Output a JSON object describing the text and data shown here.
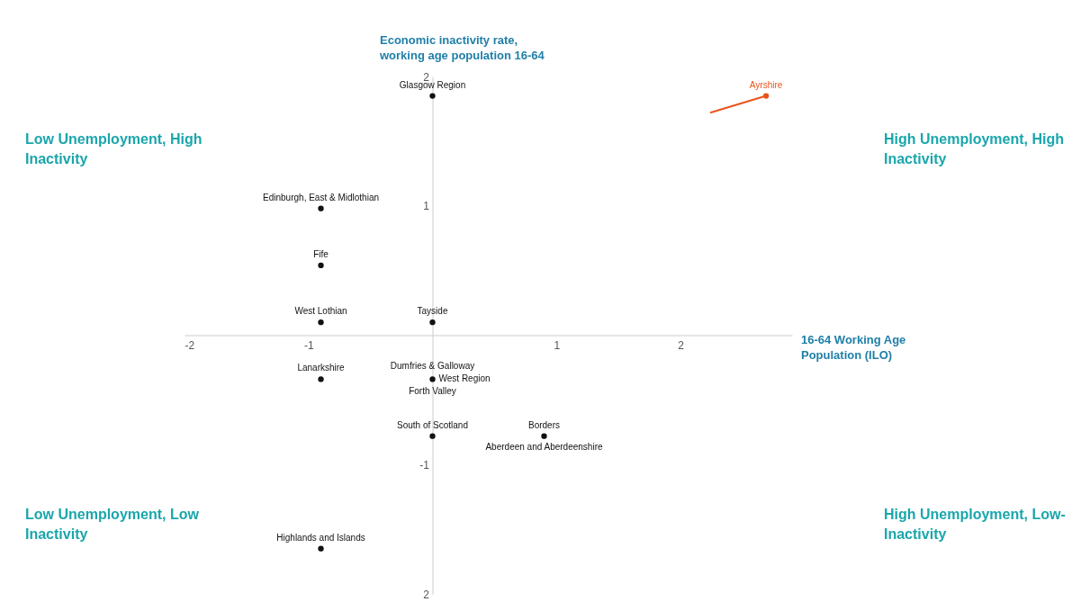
{
  "chart_data": {
    "type": "scatter",
    "xlabel": "16-64 Working Age\nPopulation (ILO)",
    "ylabel": "Economic inactivity rate,\nworking age population 16-64",
    "xlim": [
      -2,
      2.9
    ],
    "ylim": [
      -2,
      2
    ],
    "xticks": [
      -2,
      -1,
      1,
      2
    ],
    "yticks": [
      2,
      1,
      -1,
      {
        "value": -2,
        "label": "2"
      }
    ],
    "marker": "circle",
    "series": [
      {
        "color": "#111111",
        "x": [
          0,
          -0.9,
          -0.9,
          -0.9,
          0,
          -0.9,
          0,
          0,
          0.9,
          -0.9
        ],
        "values": [
          1.85,
          0.98,
          0.54,
          0.1,
          0.1,
          -0.34,
          -0.34,
          -0.78,
          -0.78,
          -1.65
        ]
      },
      {
        "color": "#e8541c",
        "x": [
          2.69
        ],
        "values": [
          1.85
        ]
      },
      {
        "type": "line",
        "marker": "none",
        "color": "#e8541c",
        "x": [
          2.24,
          2.69
        ],
        "values": [
          1.72,
          1.85
        ]
      }
    ],
    "annotations": [
      "Low Unemployment, High\nInactivity",
      "High Unemployment, High\nInactivity",
      "Low Unemployment, Low\nInactivity",
      "High Unemployment, Low-\nInactivity",
      {
        "text": "Glasgow Region",
        "x": 0,
        "y": 1.85
      },
      {
        "text": "Ayrshire",
        "x": 2.69,
        "y": 1.85
      },
      {
        "text": "Edinburgh, East & Midlothian",
        "x": -0.9,
        "y": 0.98
      },
      {
        "text": "Fife",
        "x": -0.9,
        "y": 0.54
      },
      {
        "text": "West Lothian",
        "x": -0.9,
        "y": 0.1
      },
      {
        "text": "Tayside",
        "x": 0,
        "y": 0.1
      },
      {
        "text": "Lanarkshire",
        "x": -0.9,
        "y": -0.34
      },
      {
        "text": "Dumfries & Galloway",
        "x": 0,
        "y": -0.34
      },
      {
        "text": "West Region",
        "x": 0,
        "y": -0.34
      },
      {
        "text": "Forth Valley",
        "x": 0,
        "y": -0.34
      },
      {
        "text": "South of Scotland",
        "x": 0,
        "y": -0.78
      },
      {
        "text": "Borders",
        "x": 0.9,
        "y": -0.78
      },
      {
        "text": "Aberdeen and Aberdeenshire",
        "x": 0.9,
        "y": -0.78
      },
      {
        "text": "Highlands and Islands",
        "x": -0.9,
        "y": -1.65
      }
    ]
  }
}
